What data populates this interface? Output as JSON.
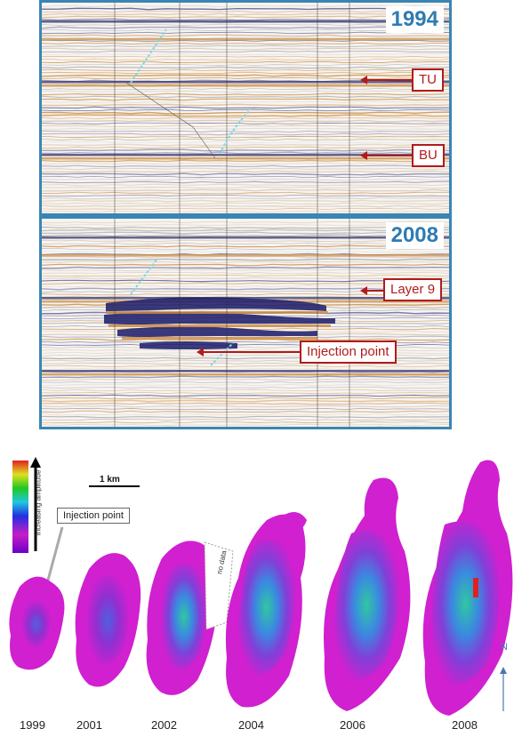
{
  "panels": [
    {
      "year": "1994",
      "labels": [
        "TU",
        "BU"
      ]
    },
    {
      "year": "2008",
      "labels": [
        "Layer 9",
        "Injection point"
      ]
    }
  ],
  "maps": {
    "years": [
      "1999",
      "2001",
      "2002",
      "2004",
      "2006",
      "2008"
    ],
    "injection_label": "Injection point",
    "scale_label": "1 km",
    "amplitude_label": "Increasing amplitude",
    "no_data_label": "no data",
    "north_label": "N"
  },
  "colors": {
    "panel_border": "#3a85b4",
    "callout": "#b11b1b",
    "year_text": "#2e7bb2"
  }
}
